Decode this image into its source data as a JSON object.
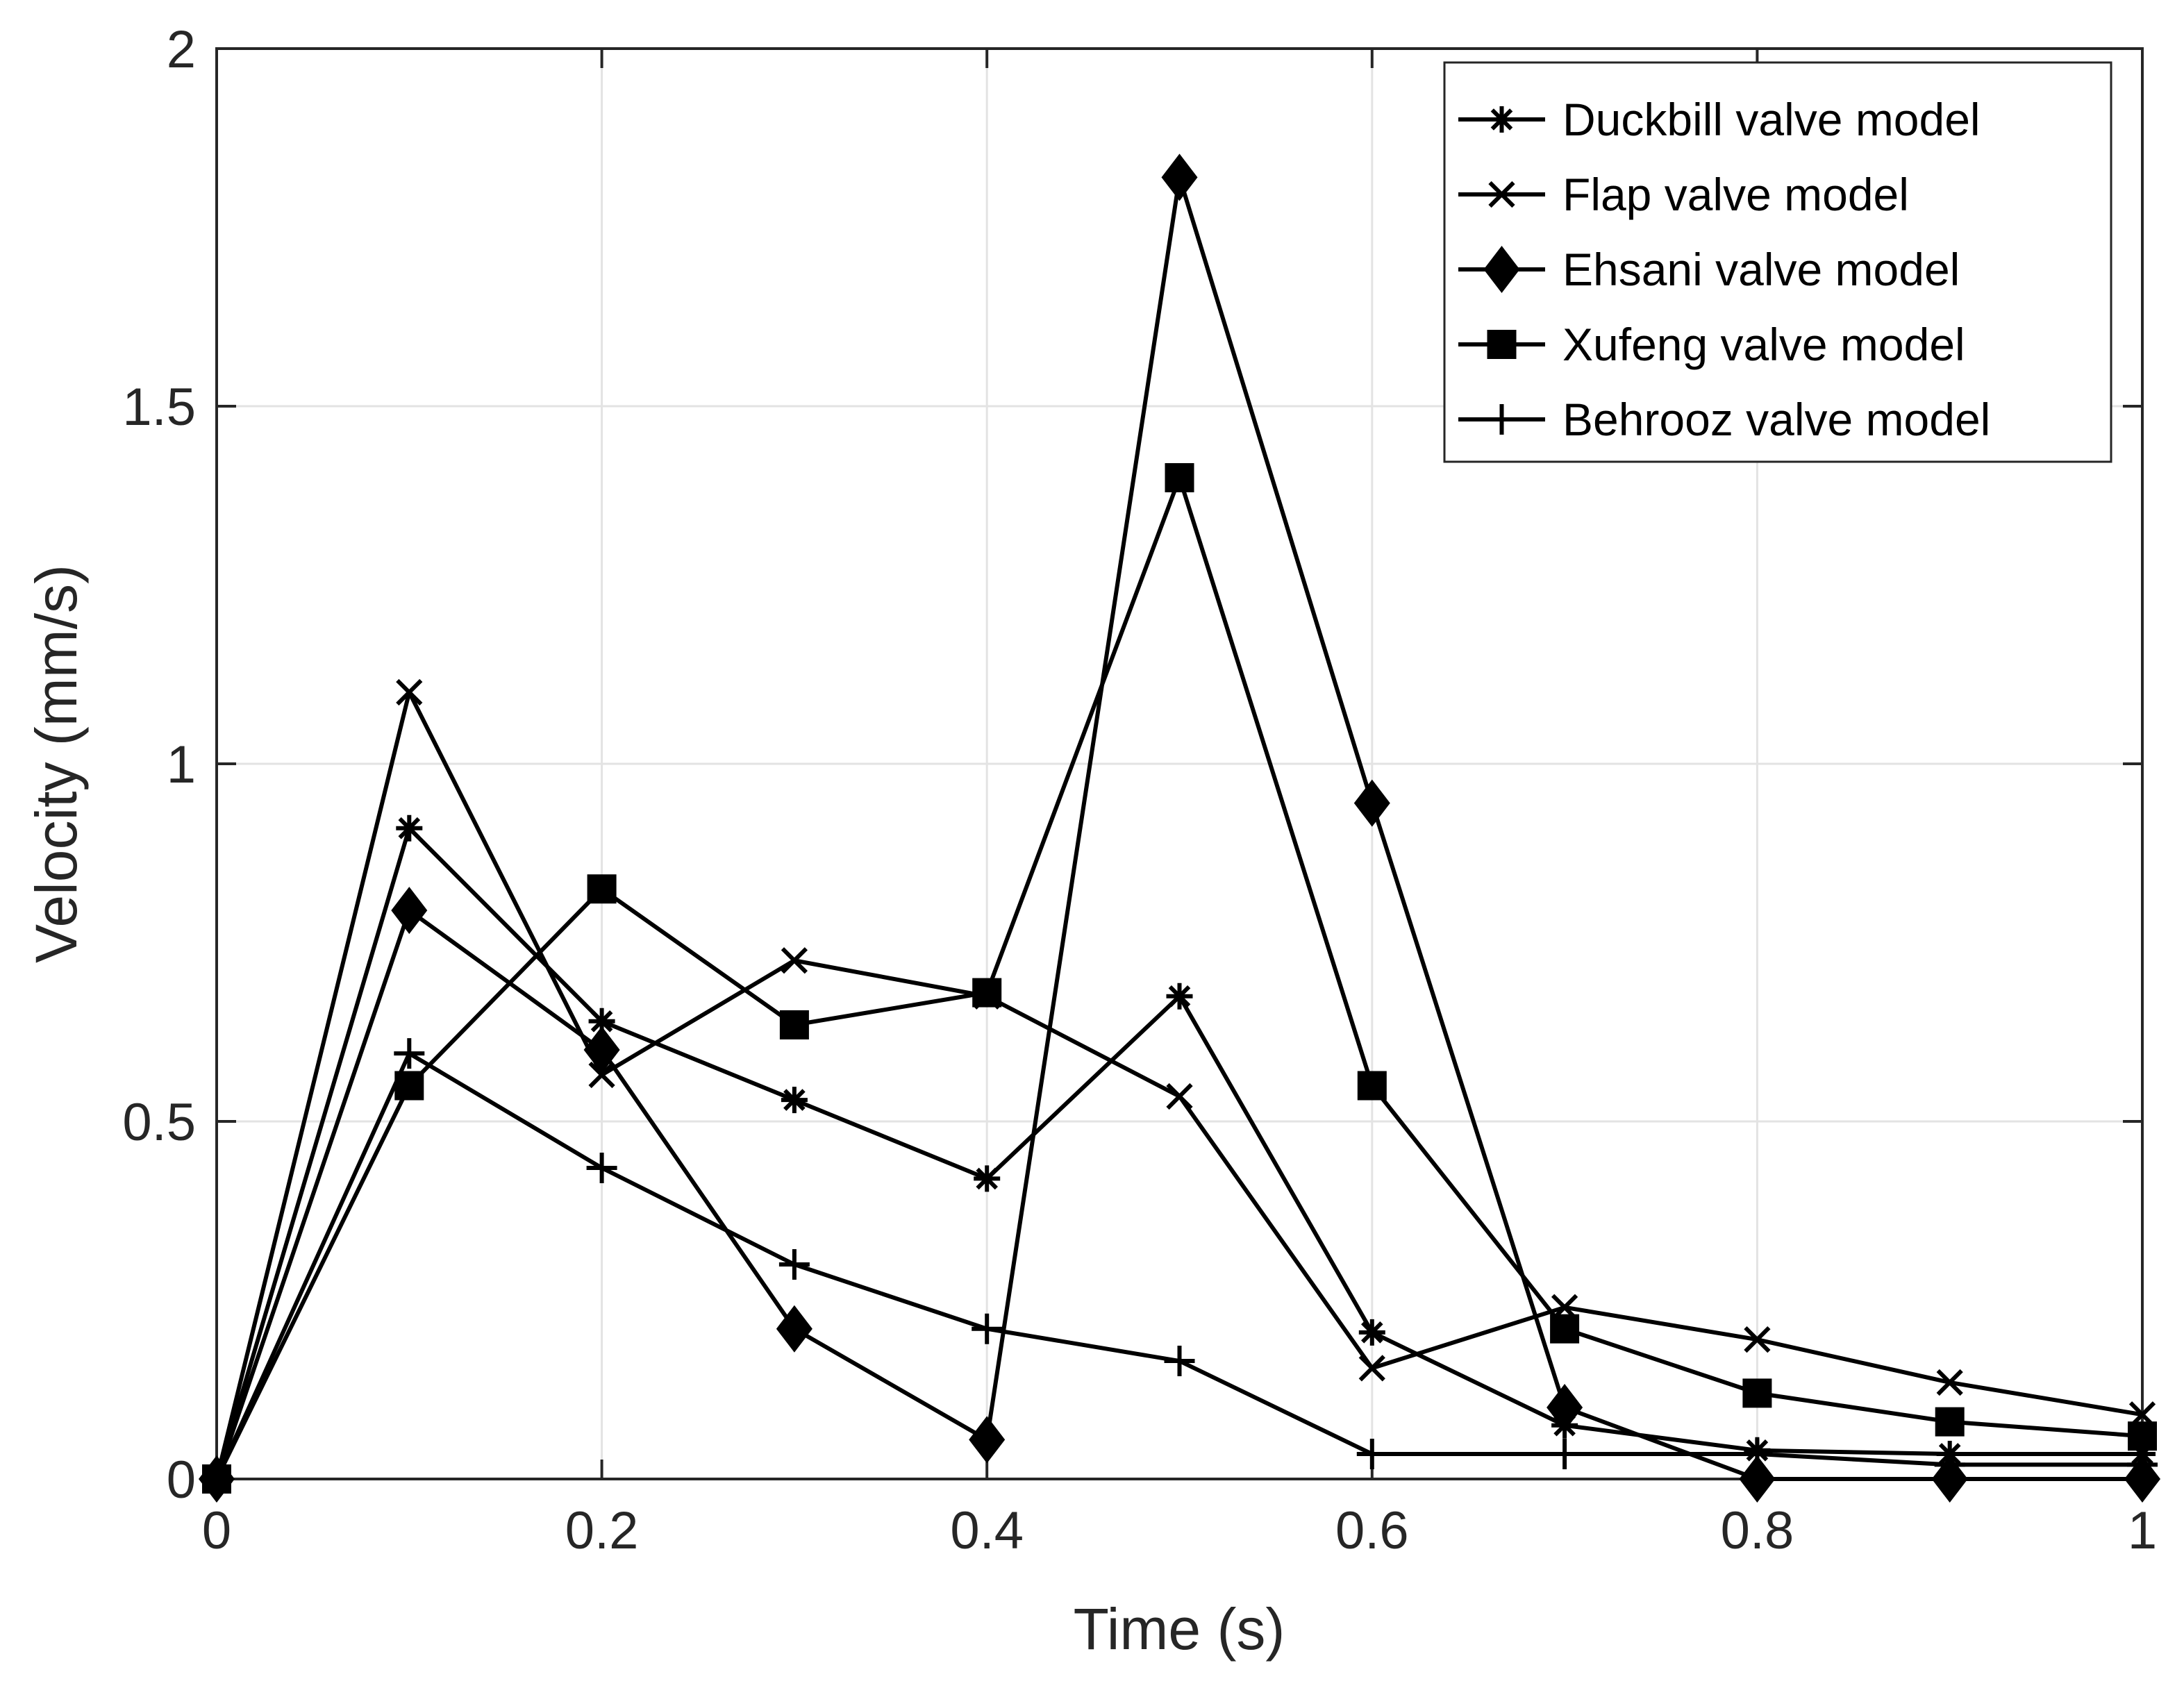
{
  "chart_data": {
    "type": "line",
    "title": "",
    "xlabel": "Time (s)",
    "ylabel": "Velocity (mm/s)",
    "xlim": [
      0,
      1
    ],
    "ylim": [
      0,
      2
    ],
    "x_tick_labels": [
      "0",
      "0.2",
      "0.4",
      "0.6",
      "0.8",
      "1"
    ],
    "y_tick_labels": [
      "0",
      "0.5",
      "1",
      "1.5",
      "2"
    ],
    "grid": true,
    "legend_position": "top-right",
    "x": [
      0,
      0.1,
      0.2,
      0.3,
      0.4,
      0.5,
      0.6,
      0.7,
      0.8,
      0.9,
      1.0
    ],
    "series": [
      {
        "name": "Duckbill valve model",
        "marker": "asterisk",
        "values": [
          0,
          0.91,
          0.64,
          0.53,
          0.42,
          0.675,
          0.205,
          0.075,
          0.04,
          0.035,
          0.035
        ]
      },
      {
        "name": "Flap valve model",
        "marker": "x",
        "values": [
          0,
          1.1,
          0.565,
          0.725,
          0.675,
          0.535,
          0.155,
          0.24,
          0.195,
          0.135,
          0.09
        ]
      },
      {
        "name": "Ehsani valve model",
        "marker": "diamond",
        "values": [
          0,
          0.795,
          0.6,
          0.21,
          0.055,
          1.82,
          0.945,
          0.1,
          0,
          0,
          0
        ]
      },
      {
        "name": "Xufeng valve model",
        "marker": "square",
        "values": [
          0,
          0.55,
          0.825,
          0.635,
          0.68,
          1.4,
          0.55,
          0.21,
          0.12,
          0.08,
          0.06
        ]
      },
      {
        "name": "Behrooz valve model",
        "marker": "plus",
        "values": [
          0,
          0.595,
          0.435,
          0.3,
          0.21,
          0.165,
          0.035,
          0.035,
          0.035,
          0.02,
          0.02
        ]
      }
    ]
  }
}
